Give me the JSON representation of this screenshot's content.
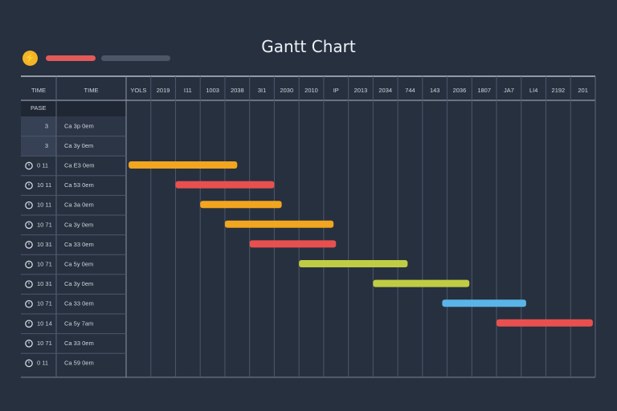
{
  "title": "Gantt Chart",
  "toolbar": {
    "icon": "bolt-icon",
    "accent_red": "#e35a5a",
    "accent_gray": "#4c5667",
    "accent_yellow": "#f2b428"
  },
  "table": {
    "col1_header": "TIME",
    "col2_header": "TIME",
    "subheader": "PASE",
    "rows": [
      {
        "id": "3",
        "label": "Ca 3p 0em",
        "icon": ""
      },
      {
        "id": "3",
        "label": "Ca 3y 0em",
        "icon": ""
      },
      {
        "id": "0 11",
        "label": "Ca E3 0em",
        "icon": "clock-icon"
      },
      {
        "id": "10 11",
        "label": "Ca 53 0em",
        "icon": "clock-icon"
      },
      {
        "id": "10 11",
        "label": "Ca 3a 0em",
        "icon": "clock-icon"
      },
      {
        "id": "10 71",
        "label": "Ca 3y 0em",
        "icon": "clock-icon"
      },
      {
        "id": "10 31",
        "label": "Ca 33 0em",
        "icon": "clock-icon"
      },
      {
        "id": "10 71",
        "label": "Ca 5y 0em",
        "icon": "clock-icon"
      },
      {
        "id": "10 31",
        "label": "Ca 3y 0em",
        "icon": "clock-icon"
      },
      {
        "id": "10 71",
        "label": "Ca 33 0em",
        "icon": "clock-icon"
      },
      {
        "id": "10 14",
        "label": "Ca 5y 7am",
        "icon": "clock-icon"
      },
      {
        "id": "10 71",
        "label": "Ca 33 0em",
        "icon": "clock-icon"
      },
      {
        "id": "0 11",
        "label": "Ca 59 0em",
        "icon": "clock-icon"
      }
    ]
  },
  "chart_data": {
    "type": "gantt",
    "title": "Gantt Chart",
    "timeline": [
      "YOLS",
      "2019",
      "I11",
      "1003",
      "2038",
      "3I1",
      "2030",
      "2010",
      "IP",
      "2013",
      "2034",
      "744",
      "143",
      "2036",
      "1807",
      "JA7",
      "LI4",
      "2192",
      "201"
    ],
    "x_range": [
      0,
      19
    ],
    "tasks": [
      {
        "row": 2,
        "start": 0.1,
        "end": 4.5,
        "color": "#f2a51f"
      },
      {
        "row": 3,
        "start": 2.0,
        "end": 6.0,
        "color": "#e8504f"
      },
      {
        "row": 4,
        "start": 3.0,
        "end": 6.3,
        "color": "#f2a51f"
      },
      {
        "row": 5,
        "start": 4.0,
        "end": 8.4,
        "color": "#f2a51f"
      },
      {
        "row": 6,
        "start": 5.0,
        "end": 8.5,
        "color": "#e8504f"
      },
      {
        "row": 7,
        "start": 7.0,
        "end": 11.4,
        "color": "#c0cc44"
      },
      {
        "row": 8,
        "start": 10.0,
        "end": 13.9,
        "color": "#c0cc44"
      },
      {
        "row": 9,
        "start": 12.8,
        "end": 16.2,
        "color": "#5ab4e8"
      },
      {
        "row": 10,
        "start": 15.0,
        "end": 18.9,
        "color": "#e8504f"
      }
    ]
  }
}
